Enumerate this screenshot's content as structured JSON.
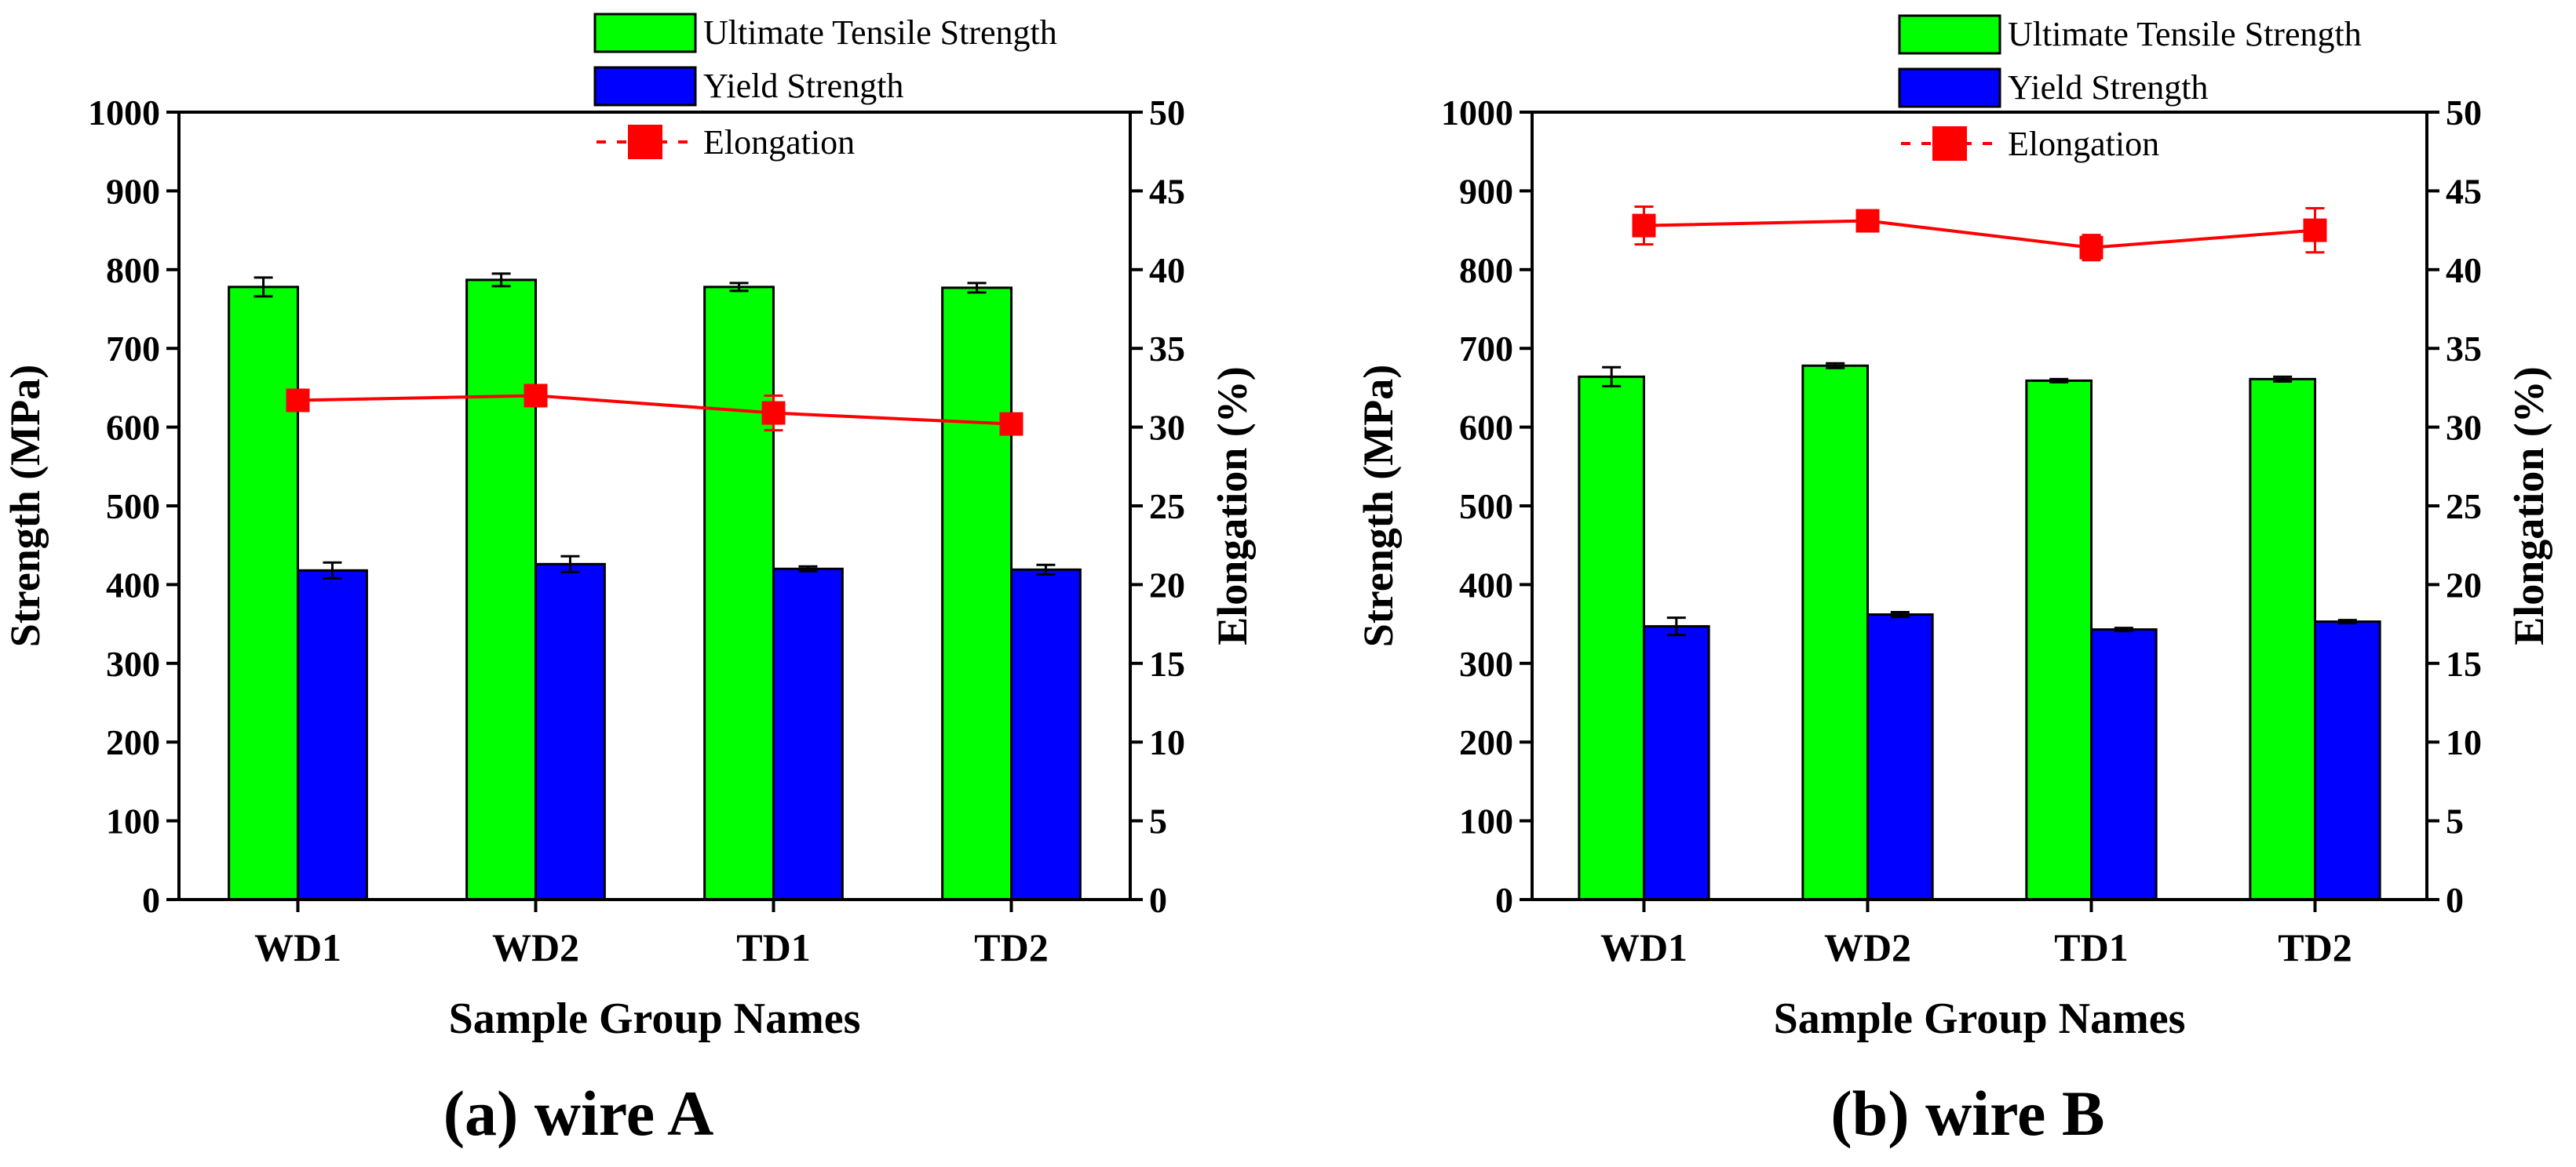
{
  "colors": {
    "uts": "#00ff00",
    "ys": "#0000ff",
    "elongation": "#ff0000",
    "axis": "#000000"
  },
  "chart_data": [
    {
      "id": "a",
      "type": "bar",
      "caption": "(a) wire A",
      "xlabel": "Sample Group Names",
      "ylabel": "Strength (MPa)",
      "y2label": "Elongation (%)",
      "ylim": [
        0,
        1000
      ],
      "y2lim": [
        0,
        50
      ],
      "yticks": [
        "0",
        "100",
        "200",
        "300",
        "400",
        "500",
        "600",
        "700",
        "800",
        "900",
        "1000"
      ],
      "y2ticks": [
        "0",
        "5",
        "10",
        "15",
        "20",
        "25",
        "30",
        "35",
        "40",
        "45",
        "50"
      ],
      "categories": [
        "WD1",
        "WD2",
        "TD1",
        "TD2"
      ],
      "legend": [
        "Ultimate Tensile Strength",
        "Yield Strength",
        "Elongation"
      ],
      "series": [
        {
          "name": "Ultimate Tensile Strength",
          "kind": "bar",
          "axis": "left",
          "values": [
            778,
            787,
            778,
            777
          ],
          "errors": [
            12,
            8,
            5,
            6
          ]
        },
        {
          "name": "Yield Strength",
          "kind": "bar",
          "axis": "left",
          "values": [
            418,
            426,
            420,
            419
          ],
          "errors": [
            10,
            10,
            3,
            6
          ]
        },
        {
          "name": "Elongation",
          "kind": "line",
          "axis": "right",
          "values": [
            31.7,
            32.0,
            30.9,
            30.2
          ],
          "errors": [
            0.6,
            0.4,
            1.1,
            0.5
          ]
        }
      ]
    },
    {
      "id": "b",
      "type": "bar",
      "caption": "(b) wire B",
      "xlabel": "Sample Group Names",
      "ylabel": "Strength (MPa)",
      "y2label": "Elongation (%)",
      "ylim": [
        0,
        1000
      ],
      "y2lim": [
        0,
        50
      ],
      "yticks": [
        "0",
        "100",
        "200",
        "300",
        "400",
        "500",
        "600",
        "700",
        "800",
        "900",
        "1000"
      ],
      "y2ticks": [
        "0",
        "5",
        "10",
        "15",
        "20",
        "25",
        "30",
        "35",
        "40",
        "45",
        "50"
      ],
      "categories": [
        "WD1",
        "WD2",
        "TD1",
        "TD2"
      ],
      "legend": [
        "Ultimate Tensile Strength",
        "Yield Strength",
        "Elongation"
      ],
      "series": [
        {
          "name": "Ultimate Tensile Strength",
          "kind": "bar",
          "axis": "left",
          "values": [
            664,
            678,
            659,
            661
          ],
          "errors": [
            12,
            3,
            2,
            3
          ]
        },
        {
          "name": "Yield Strength",
          "kind": "bar",
          "axis": "left",
          "values": [
            347,
            362,
            343,
            353
          ],
          "errors": [
            11,
            3,
            2,
            2
          ]
        },
        {
          "name": "Elongation",
          "kind": "line",
          "axis": "right",
          "values": [
            42.8,
            43.1,
            41.4,
            42.5
          ],
          "errors": [
            1.2,
            0.6,
            0.8,
            1.4
          ]
        }
      ]
    }
  ]
}
